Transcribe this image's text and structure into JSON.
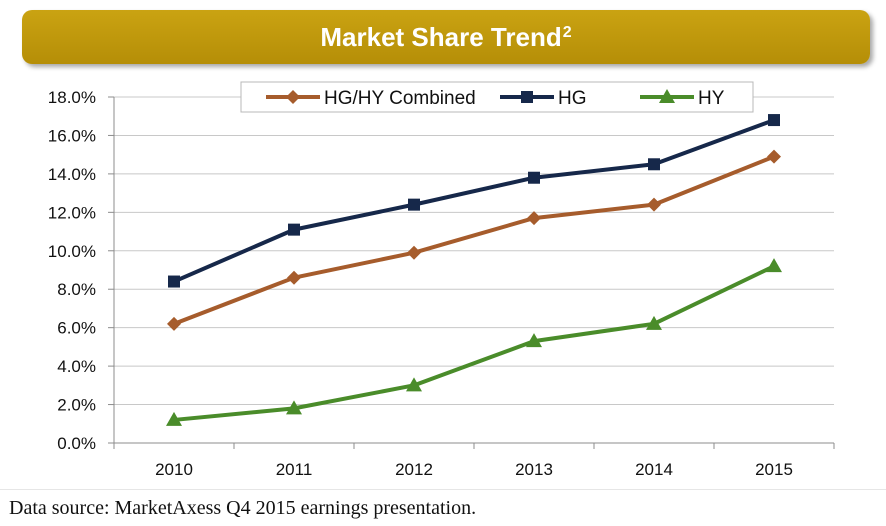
{
  "header": {
    "title": "Market Share Trend",
    "superscript": "2"
  },
  "caption": "Data source: MarketAxess Q4 2015 earnings presentation.",
  "chart_data": {
    "type": "line",
    "title": "Market Share Trend",
    "xlabel": "",
    "ylabel": "",
    "categories": [
      "2010",
      "2011",
      "2012",
      "2013",
      "2014",
      "2015"
    ],
    "ylim": [
      0,
      18
    ],
    "yticks": [
      "0.0%",
      "2.0%",
      "4.0%",
      "6.0%",
      "8.0%",
      "10.0%",
      "12.0%",
      "14.0%",
      "16.0%",
      "18.0%"
    ],
    "grid": true,
    "legend_position": "top",
    "series": [
      {
        "name": "HG/HY Combined",
        "values": [
          6.2,
          8.6,
          9.9,
          11.7,
          12.4,
          14.9
        ],
        "color": "#a65c2c",
        "marker": "diamond"
      },
      {
        "name": "HG",
        "values": [
          8.4,
          11.1,
          12.4,
          13.8,
          14.5,
          16.8
        ],
        "color": "#16284a",
        "marker": "square"
      },
      {
        "name": "HY",
        "values": [
          1.2,
          1.8,
          3.0,
          5.3,
          6.2,
          9.2
        ],
        "color": "#4a8c2a",
        "marker": "triangle"
      }
    ]
  }
}
